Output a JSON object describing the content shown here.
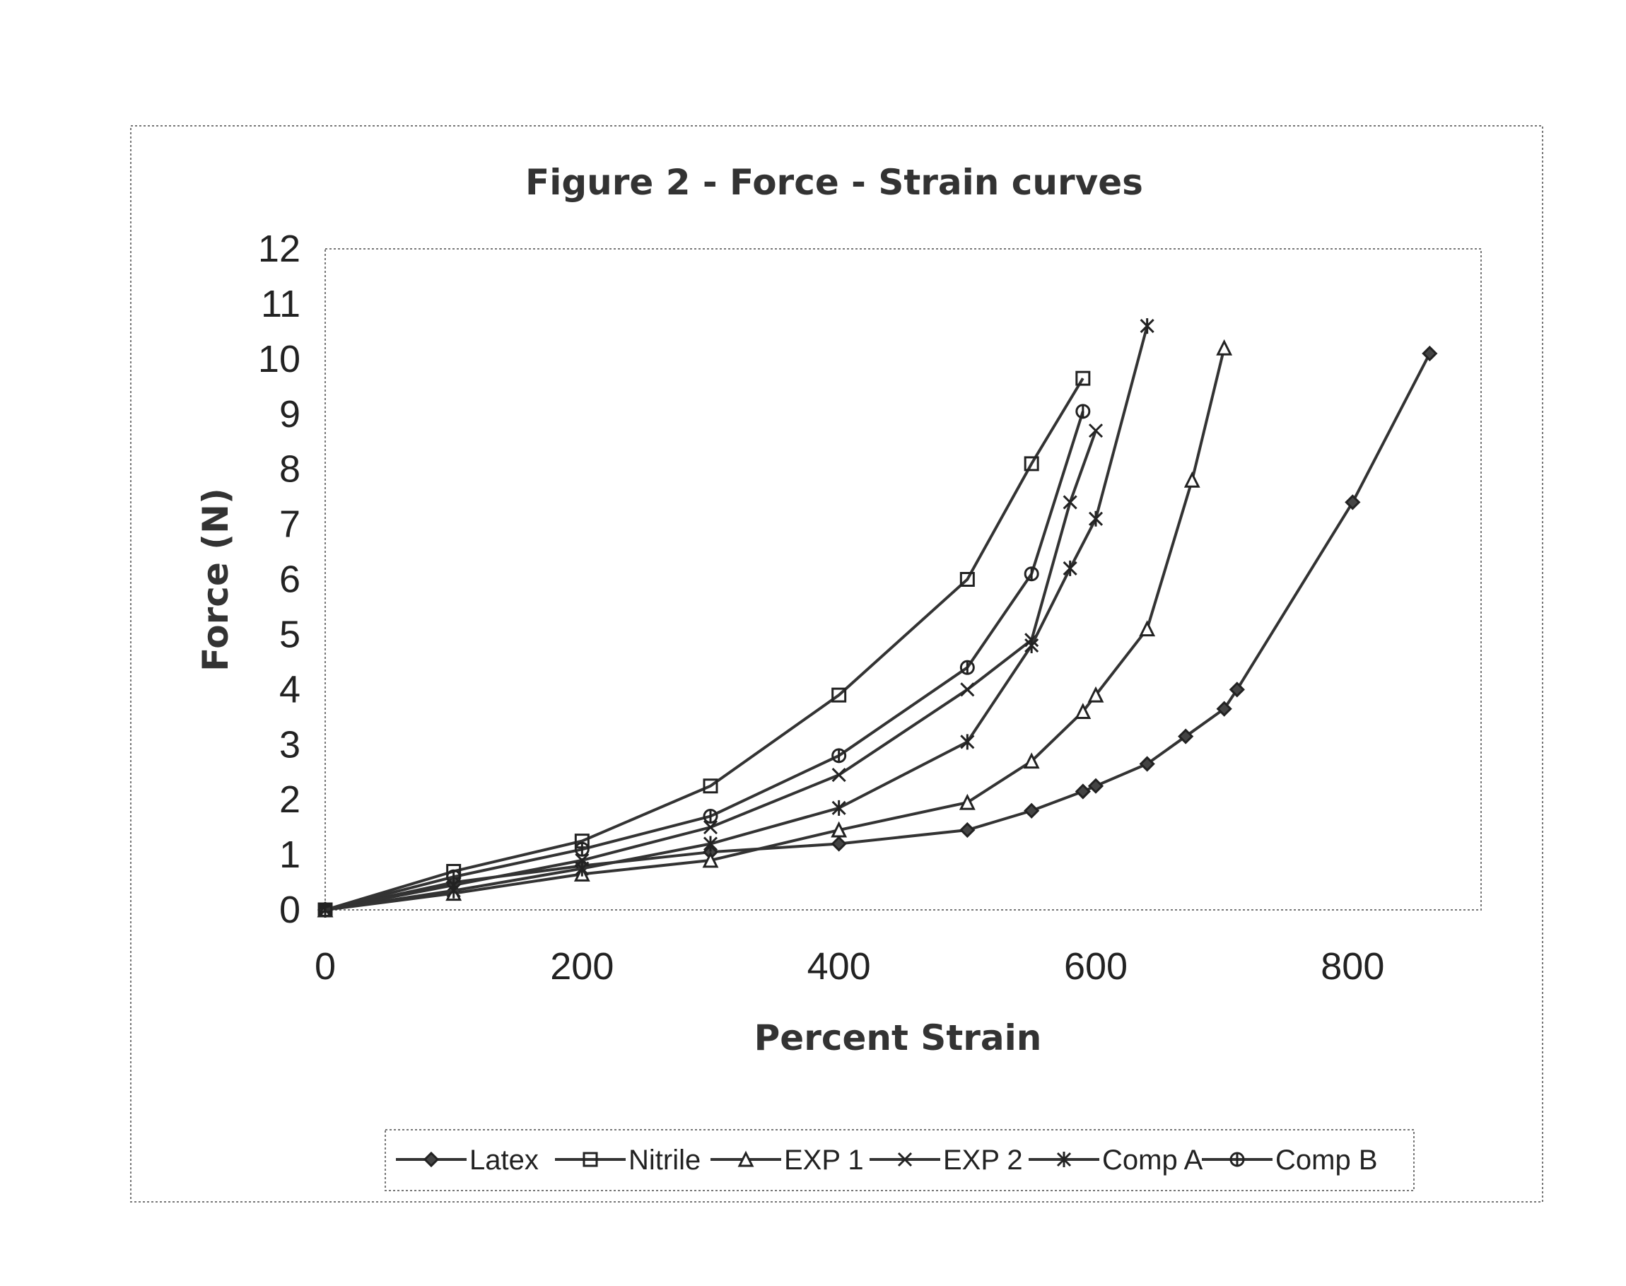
{
  "chart_data": {
    "type": "line",
    "title": "Figure 2 - Force - Strain curves",
    "xlabel": "Percent Strain",
    "ylabel": "Force (N)",
    "xlim": [
      0,
      900
    ],
    "ylim": [
      0,
      12
    ],
    "xticks": [
      0,
      200,
      400,
      600,
      800
    ],
    "yticks": [
      0,
      1,
      2,
      3,
      4,
      5,
      6,
      7,
      8,
      9,
      10,
      11,
      12
    ],
    "grid": false,
    "legend": "bottom",
    "series": [
      {
        "name": "Latex",
        "marker": "diamond",
        "points": [
          [
            0,
            0
          ],
          [
            100,
            0.5
          ],
          [
            200,
            0.8
          ],
          [
            300,
            1.05
          ],
          [
            400,
            1.2
          ],
          [
            500,
            1.45
          ],
          [
            550,
            1.8
          ],
          [
            590,
            2.15
          ],
          [
            600,
            2.25
          ],
          [
            640,
            2.65
          ],
          [
            670,
            3.15
          ],
          [
            700,
            3.65
          ],
          [
            710,
            4.0
          ],
          [
            800,
            7.4
          ],
          [
            860,
            10.1
          ]
        ]
      },
      {
        "name": "Nitrile",
        "marker": "square",
        "points": [
          [
            0,
            0
          ],
          [
            100,
            0.7
          ],
          [
            200,
            1.25
          ],
          [
            300,
            2.25
          ],
          [
            400,
            3.9
          ],
          [
            500,
            6.0
          ],
          [
            550,
            8.1
          ],
          [
            590,
            9.65
          ]
        ]
      },
      {
        "name": "EXP 1",
        "marker": "triangle",
        "points": [
          [
            0,
            0
          ],
          [
            100,
            0.3
          ],
          [
            200,
            0.65
          ],
          [
            300,
            0.9
          ],
          [
            400,
            1.45
          ],
          [
            500,
            1.95
          ],
          [
            550,
            2.7
          ],
          [
            590,
            3.6
          ],
          [
            600,
            3.9
          ],
          [
            640,
            5.1
          ],
          [
            675,
            7.8
          ],
          [
            700,
            10.2
          ]
        ]
      },
      {
        "name": "EXP 2",
        "marker": "x",
        "points": [
          [
            0,
            0
          ],
          [
            100,
            0.45
          ],
          [
            200,
            0.9
          ],
          [
            300,
            1.5
          ],
          [
            400,
            2.45
          ],
          [
            500,
            4.0
          ],
          [
            550,
            4.9
          ],
          [
            580,
            7.4
          ],
          [
            600,
            8.7
          ]
        ]
      },
      {
        "name": "Comp A",
        "marker": "asterisk",
        "points": [
          [
            0,
            0
          ],
          [
            100,
            0.35
          ],
          [
            200,
            0.75
          ],
          [
            300,
            1.2
          ],
          [
            400,
            1.85
          ],
          [
            500,
            3.05
          ],
          [
            550,
            4.8
          ],
          [
            580,
            6.2
          ],
          [
            600,
            7.1
          ],
          [
            640,
            10.6
          ]
        ]
      },
      {
        "name": "Comp B",
        "marker": "circle",
        "points": [
          [
            0,
            0
          ],
          [
            100,
            0.6
          ],
          [
            200,
            1.1
          ],
          [
            300,
            1.7
          ],
          [
            400,
            2.8
          ],
          [
            500,
            4.4
          ],
          [
            550,
            6.1
          ],
          [
            590,
            9.05
          ]
        ]
      }
    ]
  }
}
